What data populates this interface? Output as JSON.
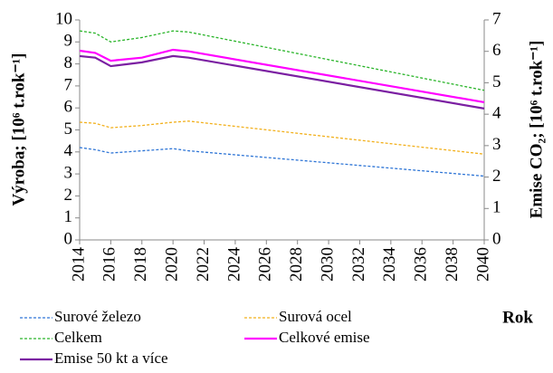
{
  "chart_data": {
    "type": "line",
    "x": [
      2014,
      2015,
      2016,
      2018,
      2020,
      2021,
      2040
    ],
    "xlim": [
      2014,
      2040
    ],
    "xticks": [
      2014,
      2016,
      2018,
      2020,
      2022,
      2024,
      2026,
      2028,
      2030,
      2032,
      2034,
      2036,
      2038,
      2040
    ],
    "ylim": [
      0,
      10
    ],
    "yticks": [
      0,
      1,
      2,
      3,
      4,
      5,
      6,
      7,
      8,
      9,
      10
    ],
    "y2lim": [
      0,
      7
    ],
    "y2ticks": [
      0,
      1,
      2,
      3,
      4,
      5,
      6,
      7
    ],
    "xlabel": "Rok",
    "ylabel": "Výroba; [10⁶ t.rok⁻¹]",
    "y2label": "Emise CO₂; [10⁶ t.rok⁻¹]",
    "series": [
      {
        "name": "Surové železo",
        "color": "#2e75d6",
        "dash": true,
        "values": [
          4.2,
          4.1,
          3.95,
          4.05,
          4.15,
          4.05,
          2.9
        ]
      },
      {
        "name": "Surová ocel",
        "color": "#f2b01c",
        "dash": true,
        "values": [
          5.35,
          5.3,
          5.1,
          5.2,
          5.35,
          5.4,
          3.9
        ]
      },
      {
        "name": "Celkem",
        "color": "#2ab52a",
        "dash": true,
        "values": [
          9.5,
          9.4,
          9.0,
          9.2,
          9.5,
          9.45,
          6.8
        ]
      },
      {
        "name": "Celkové emise",
        "color": "#ff00ff",
        "dash": false,
        "axis": "y2",
        "values": [
          6.02,
          5.95,
          5.7,
          5.8,
          6.05,
          6.0,
          4.38
        ]
      },
      {
        "name": "Emise 50 kt a více",
        "color": "#7b1fa2",
        "dash": false,
        "axis": "y2",
        "values": [
          5.85,
          5.8,
          5.53,
          5.65,
          5.85,
          5.8,
          4.18
        ]
      }
    ]
  }
}
